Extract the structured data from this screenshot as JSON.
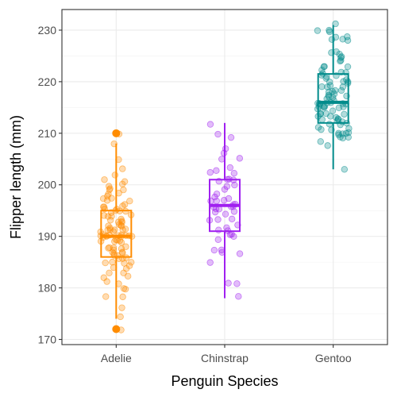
{
  "chart_data": {
    "type": "box",
    "title": "",
    "xlabel": "Penguin Species",
    "ylabel": "Flipper length (mm)",
    "ylim": [
      169,
      234
    ],
    "yticks": [
      170,
      180,
      190,
      200,
      210,
      220,
      230
    ],
    "grid": true,
    "legend": "none",
    "categories": [
      "Adelie",
      "Chinstrap",
      "Gentoo"
    ],
    "series": [
      {
        "name": "Adelie",
        "color": "#ff8c00",
        "box": {
          "whisker_low": 174,
          "q1": 186,
          "median": 190,
          "q3": 195,
          "whisker_high": 208
        },
        "outliers": [
          172,
          210
        ],
        "points": [
          172,
          174,
          176,
          178,
          178,
          180,
          180,
          181,
          181,
          182,
          182,
          183,
          183,
          184,
          184,
          184,
          185,
          185,
          185,
          185,
          186,
          186,
          186,
          186,
          186,
          187,
          187,
          187,
          187,
          187,
          188,
          188,
          188,
          188,
          188,
          189,
          189,
          189,
          189,
          189,
          189,
          190,
          190,
          190,
          190,
          190,
          190,
          190,
          190,
          190,
          190,
          190,
          190,
          191,
          191,
          191,
          191,
          191,
          191,
          191,
          192,
          192,
          192,
          192,
          192,
          193,
          193,
          193,
          193,
          193,
          194,
          194,
          194,
          194,
          195,
          195,
          195,
          195,
          195,
          195,
          196,
          196,
          196,
          196,
          197,
          197,
          197,
          197,
          198,
          198,
          198,
          199,
          199,
          199,
          200,
          200,
          201,
          201,
          202,
          203,
          205,
          208,
          210
        ]
      },
      {
        "name": "Chinstrap",
        "color": "#a020f0",
        "box": {
          "whisker_low": 178,
          "q1": 191,
          "median": 196,
          "q3": 201,
          "whisker_high": 212
        },
        "outliers": [],
        "points": [
          178,
          181,
          181,
          185,
          187,
          187,
          187,
          187,
          189,
          190,
          190,
          190,
          191,
          191,
          192,
          192,
          193,
          193,
          193,
          194,
          195,
          195,
          195,
          195,
          196,
          196,
          196,
          196,
          196,
          197,
          197,
          197,
          197,
          198,
          198,
          199,
          200,
          200,
          201,
          201,
          201,
          201,
          202,
          202,
          203,
          203,
          205,
          205,
          206,
          207,
          209,
          210,
          212
        ]
      },
      {
        "name": "Gentoo",
        "color": "#008b8b",
        "box": {
          "whisker_low": 203,
          "q1": 212,
          "median": 216,
          "q3": 221.5,
          "whisker_high": 231
        },
        "outliers": [],
        "points": [
          203,
          208,
          208,
          209,
          209,
          209,
          210,
          210,
          210,
          210,
          210,
          211,
          211,
          211,
          211,
          212,
          212,
          212,
          212,
          212,
          213,
          213,
          213,
          213,
          213,
          213,
          214,
          214,
          214,
          214,
          214,
          215,
          215,
          215,
          215,
          215,
          215,
          215,
          216,
          216,
          216,
          216,
          216,
          216,
          216,
          216,
          217,
          217,
          217,
          217,
          217,
          218,
          218,
          218,
          218,
          218,
          219,
          219,
          219,
          219,
          220,
          220,
          220,
          220,
          220,
          221,
          221,
          221,
          221,
          222,
          222,
          222,
          222,
          223,
          223,
          223,
          224,
          224,
          225,
          225,
          225,
          226,
          226,
          228,
          228,
          228,
          229,
          229,
          230,
          230,
          230,
          231
        ]
      }
    ]
  }
}
